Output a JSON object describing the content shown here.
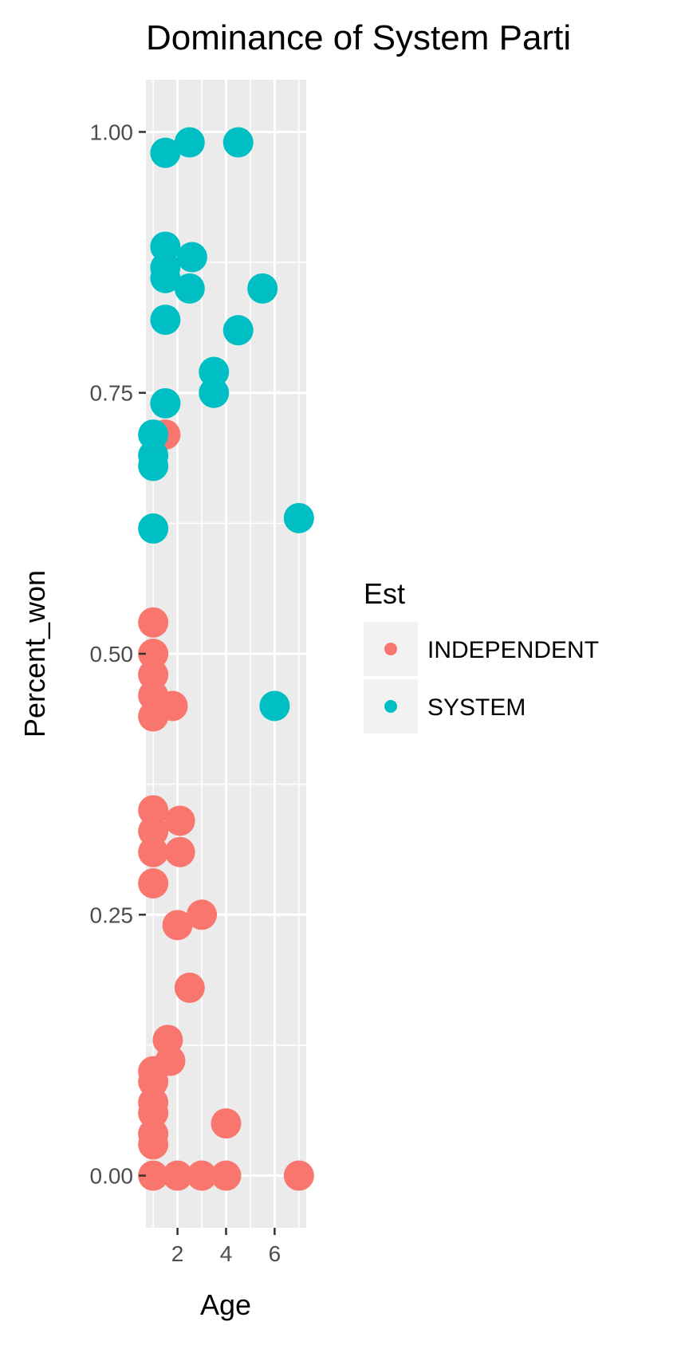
{
  "chart_data": {
    "type": "scatter",
    "title": "Dominance of System Parti",
    "xlabel": "Age",
    "ylabel": "Percent_won",
    "xlim": [
      0.7,
      7.3
    ],
    "ylim": [
      -0.05,
      1.05
    ],
    "x_ticks": [
      2,
      4,
      6
    ],
    "x_tick_labels": [
      "2",
      "4",
      "6"
    ],
    "y_ticks": [
      0,
      0.25,
      0.5,
      0.75,
      1
    ],
    "y_tick_labels": [
      "0.00",
      "0.25",
      "0.50",
      "0.75",
      "1.00"
    ],
    "grid": true,
    "legend": {
      "title": "Est",
      "position": "right"
    },
    "series": [
      {
        "name": "INDEPENDENT",
        "color": "#F8766D",
        "points": [
          [
            1.5,
            0.71
          ],
          [
            1,
            0.53
          ],
          [
            1,
            0.5
          ],
          [
            1,
            0.48
          ],
          [
            1,
            0.46
          ],
          [
            1,
            0.44
          ],
          [
            1.8,
            0.45
          ],
          [
            1,
            0.35
          ],
          [
            1,
            0.33
          ],
          [
            1,
            0.31
          ],
          [
            1,
            0.28
          ],
          [
            2.1,
            0.34
          ],
          [
            2.1,
            0.31
          ],
          [
            2,
            0.24
          ],
          [
            3,
            0.25
          ],
          [
            2.5,
            0.18
          ],
          [
            1.6,
            0.13
          ],
          [
            1.7,
            0.11
          ],
          [
            1,
            0.1
          ],
          [
            1,
            0.09
          ],
          [
            1,
            0.07
          ],
          [
            1,
            0.06
          ],
          [
            1,
            0.04
          ],
          [
            1,
            0.03
          ],
          [
            4,
            0.05
          ],
          [
            1,
            0
          ],
          [
            2,
            0
          ],
          [
            3,
            0
          ],
          [
            4,
            0
          ],
          [
            7,
            0
          ]
        ]
      },
      {
        "name": "SYSTEM",
        "color": "#00BFC4",
        "points": [
          [
            1.5,
            0.98
          ],
          [
            2.5,
            0.99
          ],
          [
            4.5,
            0.99
          ],
          [
            1.5,
            0.89
          ],
          [
            2.6,
            0.88
          ],
          [
            1.5,
            0.87
          ],
          [
            1.5,
            0.86
          ],
          [
            2.5,
            0.85
          ],
          [
            5.5,
            0.85
          ],
          [
            1.5,
            0.82
          ],
          [
            4.5,
            0.81
          ],
          [
            3.5,
            0.77
          ],
          [
            3.5,
            0.75
          ],
          [
            1.5,
            0.74
          ],
          [
            1,
            0.71
          ],
          [
            1,
            0.69
          ],
          [
            1,
            0.68
          ],
          [
            1,
            0.62
          ],
          [
            7,
            0.63
          ],
          [
            6,
            0.45
          ]
        ]
      }
    ]
  }
}
